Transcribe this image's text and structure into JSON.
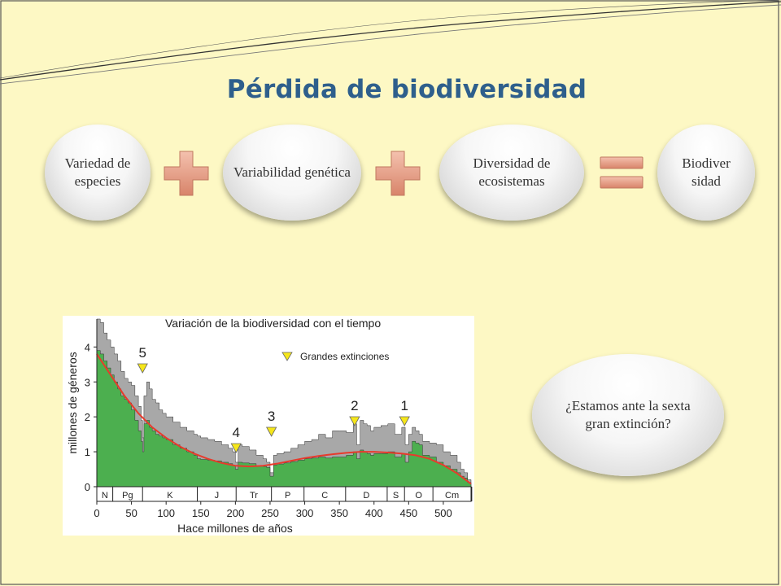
{
  "slide": {
    "title": "Pérdida de biodiversidad",
    "bubbles": [
      {
        "text": "Variedad de especies"
      },
      {
        "text": "Variabilidad genética"
      },
      {
        "text": "Diversidad de ecosistemas"
      },
      {
        "text": "Biodiver sidad"
      }
    ],
    "question": "¿Estamos ante la sexta gran extinción?"
  },
  "colors": {
    "title": "#2e5f8c",
    "operator": "#e8a28a",
    "background": "#fdf8c4"
  },
  "chart_data": {
    "type": "area",
    "title": "Variación de la biodiversidad con el tiempo",
    "xlabel": "Hace millones de años",
    "ylabel": "millones de géneros",
    "xlim": [
      0,
      540
    ],
    "ylim": [
      0,
      4.8
    ],
    "xticks": [
      0,
      50,
      100,
      150,
      200,
      250,
      300,
      350,
      400,
      450,
      500
    ],
    "yticks": [
      0,
      1,
      2,
      3,
      4
    ],
    "periods": [
      {
        "label": "N",
        "start": 0,
        "end": 23
      },
      {
        "label": "Pg",
        "start": 23,
        "end": 66
      },
      {
        "label": "K",
        "start": 66,
        "end": 145
      },
      {
        "label": "J",
        "start": 145,
        "end": 201
      },
      {
        "label": "Tr",
        "start": 201,
        "end": 252
      },
      {
        "label": "P",
        "start": 252,
        "end": 299
      },
      {
        "label": "C",
        "start": 299,
        "end": 359
      },
      {
        "label": "D",
        "start": 359,
        "end": 419
      },
      {
        "label": "S",
        "start": 419,
        "end": 444
      },
      {
        "label": "O",
        "start": 444,
        "end": 485
      },
      {
        "label": "Cm",
        "start": 485,
        "end": 541
      }
    ],
    "legend": "Grandes extinciones",
    "extinctions": [
      {
        "label": "5",
        "x": 66
      },
      {
        "label": "4",
        "x": 201
      },
      {
        "label": "3",
        "x": 252
      },
      {
        "label": "2",
        "x": 372
      },
      {
        "label": "1",
        "x": 444
      }
    ],
    "series": [
      {
        "color": "#a8a8a8",
        "x": [
          0,
          5,
          10,
          15,
          20,
          25,
          30,
          35,
          40,
          45,
          50,
          55,
          60,
          64,
          66,
          68,
          72,
          76,
          80,
          85,
          90,
          95,
          100,
          110,
          120,
          130,
          140,
          145,
          150,
          160,
          170,
          180,
          190,
          196,
          200,
          204,
          210,
          220,
          230,
          240,
          245,
          250,
          255,
          260,
          270,
          280,
          290,
          300,
          310,
          320,
          330,
          340,
          350,
          360,
          370,
          375,
          380,
          385,
          390,
          395,
          400,
          410,
          420,
          430,
          440,
          445,
          450,
          455,
          460,
          465,
          470,
          480,
          490,
          500,
          510,
          520,
          525,
          530,
          535,
          540
        ],
        "values": [
          4.8,
          4.7,
          4.4,
          4.2,
          4.0,
          3.8,
          3.6,
          3.3,
          3.1,
          3.0,
          2.9,
          2.6,
          2.3,
          1.9,
          1.4,
          2.6,
          3.0,
          2.8,
          2.5,
          2.4,
          2.2,
          2.1,
          2.0,
          1.85,
          1.7,
          1.6,
          1.5,
          1.45,
          1.4,
          1.35,
          1.3,
          1.2,
          1.1,
          1.0,
          0.7,
          1.2,
          1.15,
          1.05,
          0.9,
          0.8,
          0.7,
          0.4,
          0.9,
          0.95,
          1.0,
          1.1,
          1.2,
          1.3,
          1.35,
          1.5,
          1.4,
          1.6,
          1.6,
          1.55,
          1.8,
          1.2,
          1.9,
          1.8,
          1.75,
          1.6,
          1.7,
          1.75,
          1.8,
          1.5,
          1.7,
          1.2,
          1.5,
          1.7,
          1.6,
          1.5,
          1.3,
          1.25,
          1.2,
          1.0,
          0.9,
          0.7,
          0.5,
          0.4,
          0.2,
          0.1
        ]
      },
      {
        "color": "#4caf4f",
        "x": [
          0,
          5,
          10,
          15,
          20,
          25,
          30,
          35,
          40,
          45,
          50,
          55,
          60,
          64,
          66,
          68,
          72,
          76,
          80,
          85,
          90,
          95,
          100,
          110,
          120,
          130,
          140,
          145,
          150,
          160,
          170,
          180,
          190,
          196,
          200,
          204,
          210,
          220,
          230,
          240,
          245,
          250,
          255,
          260,
          270,
          280,
          290,
          300,
          310,
          320,
          330,
          340,
          350,
          360,
          370,
          375,
          380,
          385,
          390,
          395,
          400,
          410,
          420,
          430,
          440,
          445,
          450,
          455,
          460,
          465,
          470,
          480,
          490,
          500,
          510,
          520,
          525,
          530,
          535,
          540
        ],
        "values": [
          3.9,
          3.8,
          3.6,
          3.4,
          3.2,
          3.0,
          2.8,
          2.6,
          2.5,
          2.4,
          2.2,
          1.9,
          1.6,
          1.3,
          1.0,
          1.8,
          1.9,
          1.7,
          1.6,
          1.5,
          1.45,
          1.4,
          1.35,
          1.2,
          1.1,
          1.0,
          0.9,
          0.8,
          0.78,
          0.76,
          0.74,
          0.7,
          0.66,
          0.6,
          0.5,
          0.7,
          0.68,
          0.66,
          0.6,
          0.58,
          0.55,
          0.3,
          0.62,
          0.65,
          0.68,
          0.72,
          0.76,
          0.8,
          0.82,
          0.85,
          0.82,
          0.85,
          0.85,
          0.9,
          1.0,
          0.8,
          1.05,
          1.0,
          0.95,
          0.9,
          0.95,
          0.95,
          1.0,
          0.85,
          0.95,
          0.7,
          1.0,
          1.3,
          1.25,
          1.2,
          0.9,
          0.85,
          0.7,
          0.6,
          0.5,
          0.4,
          0.3,
          0.25,
          0.12,
          0.05
        ]
      },
      {
        "color": "#e83a2c",
        "x": [
          0,
          20,
          40,
          60,
          80,
          100,
          120,
          140,
          160,
          180,
          200,
          220,
          240,
          260,
          280,
          300,
          320,
          340,
          360,
          380,
          400,
          420,
          440,
          460,
          480,
          500,
          520,
          540
        ],
        "values": [
          3.8,
          3.2,
          2.6,
          2.1,
          1.7,
          1.4,
          1.15,
          0.95,
          0.8,
          0.68,
          0.6,
          0.58,
          0.6,
          0.66,
          0.74,
          0.82,
          0.88,
          0.93,
          0.97,
          1.0,
          1.0,
          0.98,
          0.95,
          0.9,
          0.8,
          0.62,
          0.38,
          0.08
        ]
      }
    ]
  }
}
